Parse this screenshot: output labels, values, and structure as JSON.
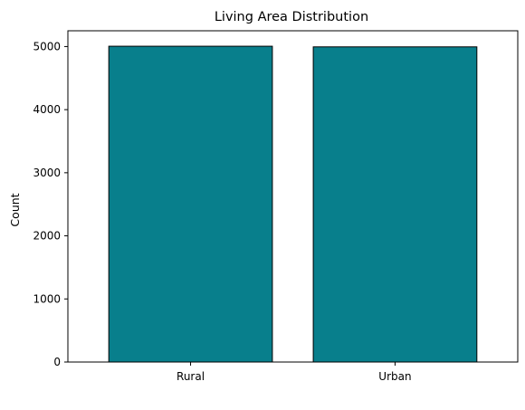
{
  "chart_data": {
    "type": "bar",
    "title": "Living Area Distribution",
    "xlabel": "",
    "ylabel": "Count",
    "categories": [
      "Rural",
      "Urban"
    ],
    "values": [
      5005,
      4995
    ],
    "ylim": [
      0,
      5250
    ],
    "yticks": [
      0,
      1000,
      2000,
      3000,
      4000,
      5000
    ],
    "bar_color": "#087f8c",
    "edge_color": "#000000",
    "grid": false,
    "legend": "none"
  }
}
